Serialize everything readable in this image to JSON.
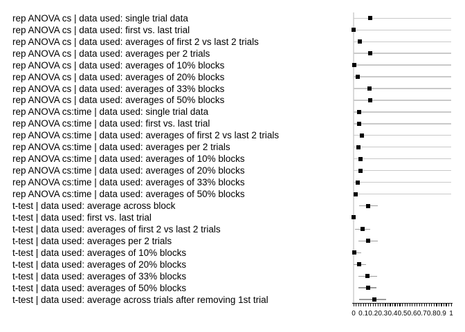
{
  "chart_data": {
    "type": "scatter",
    "subtype": "forest-dot-plot",
    "title": "",
    "xlabel": "",
    "ylabel": "",
    "xlim": [
      0,
      1
    ],
    "x_tick_labels": [
      "0",
      "0.1",
      "0.2",
      "0.3",
      "0.4",
      "0.5",
      "0.6",
      "0.7",
      "0.8",
      "0.9",
      "1"
    ],
    "x_tick_values": [
      0,
      0.1,
      0.2,
      0.3,
      0.4,
      0.5,
      0.6,
      0.7,
      0.8,
      0.9,
      1
    ],
    "minor_tick_step": 0.025,
    "grid": false,
    "legend": null,
    "rows": [
      {
        "label": "rep ANOVA cs | data used: single trial data",
        "value": 0.17,
        "lo": 0.0,
        "hi": 1.0
      },
      {
        "label": "rep ANOVA cs | data used: first vs. last trial",
        "value": 0.002,
        "lo": 0.0,
        "hi": 1.0
      },
      {
        "label": "rep ANOVA cs | data used: averages of first 2 vs last 2 trials",
        "value": 0.065,
        "lo": 0.0,
        "hi": 1.0
      },
      {
        "label": "rep ANOVA cs | data used: averages per 2 trials",
        "value": 0.172,
        "lo": 0.0,
        "hi": 1.0
      },
      {
        "label": "rep ANOVA cs | data used: averages of 10% blocks",
        "value": 0.008,
        "lo": 0.0,
        "hi": 1.0
      },
      {
        "label": "rep ANOVA cs | data used: averages of 20% blocks",
        "value": 0.045,
        "lo": 0.0,
        "hi": 1.0
      },
      {
        "label": "rep ANOVA cs | data used: averages of 33% blocks",
        "value": 0.16,
        "lo": 0.0,
        "hi": 1.0
      },
      {
        "label": "rep ANOVA cs | data used: averages of 50% blocks",
        "value": 0.172,
        "lo": 0.0,
        "hi": 1.0
      },
      {
        "label": "rep ANOVA cs:time | data used: single trial data",
        "value": 0.057,
        "lo": 0.0,
        "hi": 1.0
      },
      {
        "label": "rep ANOVA cs:time | data used: first vs. last trial",
        "value": 0.057,
        "lo": 0.0,
        "hi": 1.0
      },
      {
        "label": "rep ANOVA cs:time | data used: averages of first 2 vs last 2 trials",
        "value": 0.083,
        "lo": 0.0,
        "hi": 1.0
      },
      {
        "label": "rep ANOVA cs:time | data used: averages per 2 trials",
        "value": 0.052,
        "lo": 0.0,
        "hi": 1.0
      },
      {
        "label": "rep ANOVA cs:time | data used: averages of 10% blocks",
        "value": 0.072,
        "lo": 0.0,
        "hi": 1.0
      },
      {
        "label": "rep ANOVA cs:time | data used: averages of 20% blocks",
        "value": 0.072,
        "lo": 0.0,
        "hi": 1.0
      },
      {
        "label": "rep ANOVA cs:time | data used: averages of 33% blocks",
        "value": 0.04,
        "lo": 0.0,
        "hi": 1.0
      },
      {
        "label": "rep ANOVA cs:time | data used: averages of 50% blocks",
        "value": 0.021,
        "lo": 0.0,
        "hi": 1.0
      },
      {
        "label": "t-test | data used: average across block",
        "value": 0.149,
        "lo": 0.057,
        "hi": 0.25
      },
      {
        "label": "t-test | data used: first vs. last trial",
        "value": 0.002,
        "lo": 0.0,
        "hi": 0.02
      },
      {
        "label": "t-test | data used: averages of first 2 vs last 2 trials",
        "value": 0.092,
        "lo": 0.016,
        "hi": 0.17
      },
      {
        "label": "t-test | data used: averages per 2 trials",
        "value": 0.148,
        "lo": 0.052,
        "hi": 0.25
      },
      {
        "label": "t-test | data used: averages of 10% blocks",
        "value": 0.008,
        "lo": 0.0,
        "hi": 0.08
      },
      {
        "label": "t-test | data used: averages of 20% blocks",
        "value": 0.06,
        "lo": 0.0,
        "hi": 0.126
      },
      {
        "label": "t-test | data used: averages of 33% blocks",
        "value": 0.142,
        "lo": 0.047,
        "hi": 0.243
      },
      {
        "label": "t-test | data used: averages of 50% blocks",
        "value": 0.147,
        "lo": 0.047,
        "hi": 0.236
      },
      {
        "label": "t-test | data used: average across trials after removing 1st trial",
        "value": 0.214,
        "lo": 0.057,
        "hi": 0.333
      }
    ]
  },
  "colors": {
    "background": "#ffffff",
    "marker": "#000000",
    "full_range_line": "#c9c9c9",
    "ci_line": "#9b9b9b",
    "y_axis_line": "#d9d9d9",
    "x_axis": "#111111",
    "text": "#000000"
  }
}
